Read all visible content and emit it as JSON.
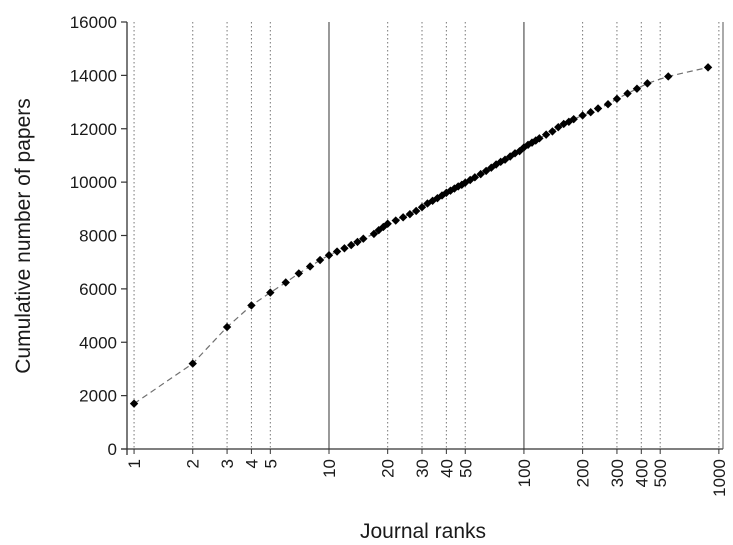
{
  "chart_data": {
    "type": "scatter",
    "title": "",
    "xlabel": "Journal ranks",
    "ylabel": "Cumulative number of papers",
    "x_scale": "log",
    "xlim": [
      0.92,
      1050
    ],
    "ylim": [
      0,
      16000
    ],
    "x_tick_values": [
      1,
      2,
      3,
      4,
      5,
      10,
      20,
      30,
      40,
      50,
      100,
      200,
      300,
      400,
      500,
      1000
    ],
    "x_tick_labels": [
      "1",
      "2",
      "3",
      "4",
      "5",
      "10",
      "20",
      "30",
      "40",
      "50",
      "100",
      "200",
      "300",
      "400",
      "500",
      "1000"
    ],
    "x_major_grid": [
      10,
      100
    ],
    "y_tick_values": [
      0,
      2000,
      4000,
      6000,
      8000,
      10000,
      12000,
      14000,
      16000
    ],
    "y_tick_labels": [
      "0",
      "2000",
      "4000",
      "6000",
      "8000",
      "10000",
      "12000",
      "14000",
      "16000"
    ],
    "grid": "vertical dotted at minor decades, solid at 10 and 100",
    "connector": "dashed",
    "marker": "diamond",
    "colors": {
      "marker": "#000000",
      "line": "#707070",
      "grid": "#777777",
      "axis": "#333333"
    },
    "series": [
      {
        "x": [
          1,
          2,
          3,
          4,
          5,
          6,
          7,
          8,
          9,
          10,
          11,
          12,
          13,
          14,
          15,
          17,
          18,
          19,
          20,
          22,
          24,
          26,
          28,
          30,
          32,
          34,
          36,
          38,
          40,
          42,
          44,
          46,
          48,
          50,
          53,
          56,
          60,
          64,
          68,
          72,
          76,
          80,
          85,
          90,
          95,
          100,
          105,
          110,
          115,
          120,
          130,
          140,
          150,
          160,
          170,
          180,
          200,
          220,
          240,
          270,
          300,
          340,
          380,
          430,
          550,
          880
        ],
        "y": [
          1700,
          3200,
          4570,
          5380,
          5860,
          6240,
          6580,
          6840,
          7080,
          7260,
          7400,
          7520,
          7640,
          7760,
          7880,
          8060,
          8200,
          8320,
          8440,
          8560,
          8680,
          8800,
          8920,
          9060,
          9200,
          9300,
          9400,
          9500,
          9600,
          9680,
          9760,
          9840,
          9900,
          9980,
          10080,
          10180,
          10300,
          10420,
          10540,
          10660,
          10760,
          10840,
          10960,
          11080,
          11160,
          11300,
          11400,
          11480,
          11560,
          11640,
          11780,
          11900,
          12060,
          12180,
          12260,
          12360,
          12500,
          12620,
          12760,
          12920,
          13120,
          13320,
          13500,
          13700,
          13960,
          14300
        ]
      }
    ]
  }
}
